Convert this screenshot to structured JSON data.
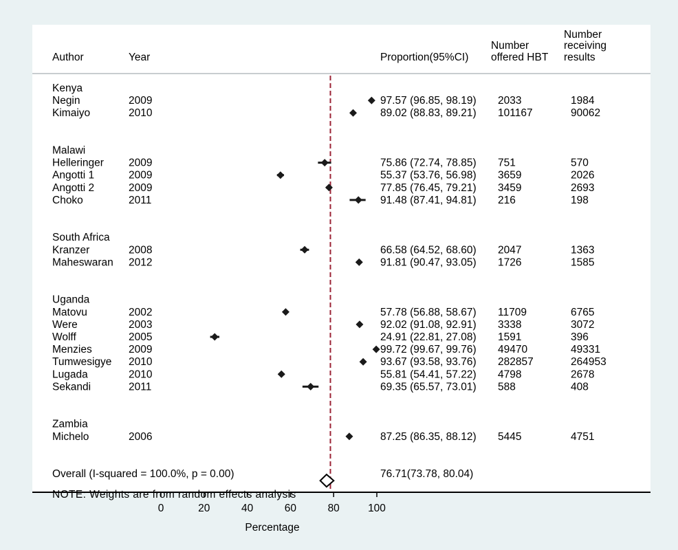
{
  "chart_data": {
    "type": "forest",
    "columns": {
      "author": "Author",
      "year": "Year",
      "proportion": "Proportion(95%CI)",
      "offered": [
        "Number",
        "offered HBT"
      ],
      "receiving": [
        "Number",
        "receiving",
        "results"
      ]
    },
    "xlabel": "Percentage",
    "xticks": [
      0,
      20,
      40,
      60,
      80,
      100
    ],
    "xlim": [
      0,
      100
    ],
    "reference_line": 78.5,
    "groups": [
      {
        "name": "Kenya",
        "studies": [
          {
            "author": "Negin",
            "year": "2009",
            "estimate": 97.57,
            "lower": 96.85,
            "upper": 98.19,
            "ci_text": "97.57 (96.85, 98.19)",
            "offered": "2033",
            "receiving": "1984"
          },
          {
            "author": "Kimaiyo",
            "year": "2010",
            "estimate": 89.02,
            "lower": 88.83,
            "upper": 89.21,
            "ci_text": "89.02 (88.83, 89.21)",
            "offered": "101167",
            "receiving": "90062"
          }
        ]
      },
      {
        "name": "Malawi",
        "studies": [
          {
            "author": "Helleringer",
            "year": "2009",
            "estimate": 75.86,
            "lower": 72.74,
            "upper": 78.85,
            "ci_text": "75.86 (72.74, 78.85)",
            "offered": "751",
            "receiving": "570"
          },
          {
            "author": "Angotti 1",
            "year": "2009",
            "estimate": 55.37,
            "lower": 53.76,
            "upper": 56.98,
            "ci_text": "55.37 (53.76, 56.98)",
            "offered": "3659",
            "receiving": "2026"
          },
          {
            "author": "Angotti 2",
            "year": "2009",
            "estimate": 77.85,
            "lower": 76.45,
            "upper": 79.21,
            "ci_text": "77.85 (76.45, 79.21)",
            "offered": "3459",
            "receiving": "2693"
          },
          {
            "author": "Choko",
            "year": "2011",
            "estimate": 91.48,
            "lower": 87.41,
            "upper": 94.81,
            "ci_text": "91.48 (87.41, 94.81)",
            "offered": "216",
            "receiving": "198"
          }
        ]
      },
      {
        "name": "South Africa",
        "studies": [
          {
            "author": "Kranzer",
            "year": "2008",
            "estimate": 66.58,
            "lower": 64.52,
            "upper": 68.6,
            "ci_text": "66.58 (64.52, 68.60)",
            "offered": "2047",
            "receiving": "1363"
          },
          {
            "author": "Maheswaran",
            "year": "2012",
            "estimate": 91.81,
            "lower": 90.47,
            "upper": 93.05,
            "ci_text": "91.81 (90.47, 93.05)",
            "offered": "1726",
            "receiving": "1585"
          }
        ]
      },
      {
        "name": "Uganda",
        "studies": [
          {
            "author": "Matovu",
            "year": "2002",
            "estimate": 57.78,
            "lower": 56.88,
            "upper": 58.67,
            "ci_text": "57.78 (56.88, 58.67)",
            "offered": "11709",
            "receiving": "6765"
          },
          {
            "author": "Were",
            "year": "2003",
            "estimate": 92.02,
            "lower": 91.08,
            "upper": 92.91,
            "ci_text": "92.02 (91.08, 92.91)",
            "offered": "3338",
            "receiving": "3072"
          },
          {
            "author": "Wolff",
            "year": "2005",
            "estimate": 24.91,
            "lower": 22.81,
            "upper": 27.08,
            "ci_text": "24.91 (22.81, 27.08)",
            "offered": "1591",
            "receiving": "396"
          },
          {
            "author": "Menzies",
            "year": "2009",
            "estimate": 99.72,
            "lower": 99.67,
            "upper": 99.76,
            "ci_text": "99.72 (99.67, 99.76)",
            "offered": "49470",
            "receiving": "49331"
          },
          {
            "author": "Tumwesigye",
            "year": "2010",
            "estimate": 93.67,
            "lower": 93.58,
            "upper": 93.76,
            "ci_text": "93.67 (93.58, 93.76)",
            "offered": "282857",
            "receiving": "264953"
          },
          {
            "author": "Lugada",
            "year": "2010",
            "estimate": 55.81,
            "lower": 54.41,
            "upper": 57.22,
            "ci_text": "55.81 (54.41, 57.22)",
            "offered": "4798",
            "receiving": "2678"
          },
          {
            "author": "Sekandi",
            "year": "2011",
            "estimate": 69.35,
            "lower": 65.57,
            "upper": 73.01,
            "ci_text": "69.35 (65.57, 73.01)",
            "offered": "588",
            "receiving": "408"
          }
        ]
      },
      {
        "name": "Zambia",
        "studies": [
          {
            "author": "Michelo",
            "year": "2006",
            "estimate": 87.25,
            "lower": 86.35,
            "upper": 88.12,
            "ci_text": "87.25 (86.35, 88.12)",
            "offered": "5445",
            "receiving": "4751"
          }
        ]
      }
    ],
    "overall": {
      "label": "Overall  (I-squared = 100.0%, p = 0.00)",
      "estimate": 76.71,
      "lower": 73.78,
      "upper": 80.04,
      "ci_text": "76.71(73.78, 80.04)"
    },
    "note": "NOTE: Weights are from random effects analysis",
    "colors": {
      "background": "#eaf2f3",
      "panel": "#ffffff",
      "marker": "#1a1a1a",
      "reference_line": "#9b2335"
    }
  }
}
